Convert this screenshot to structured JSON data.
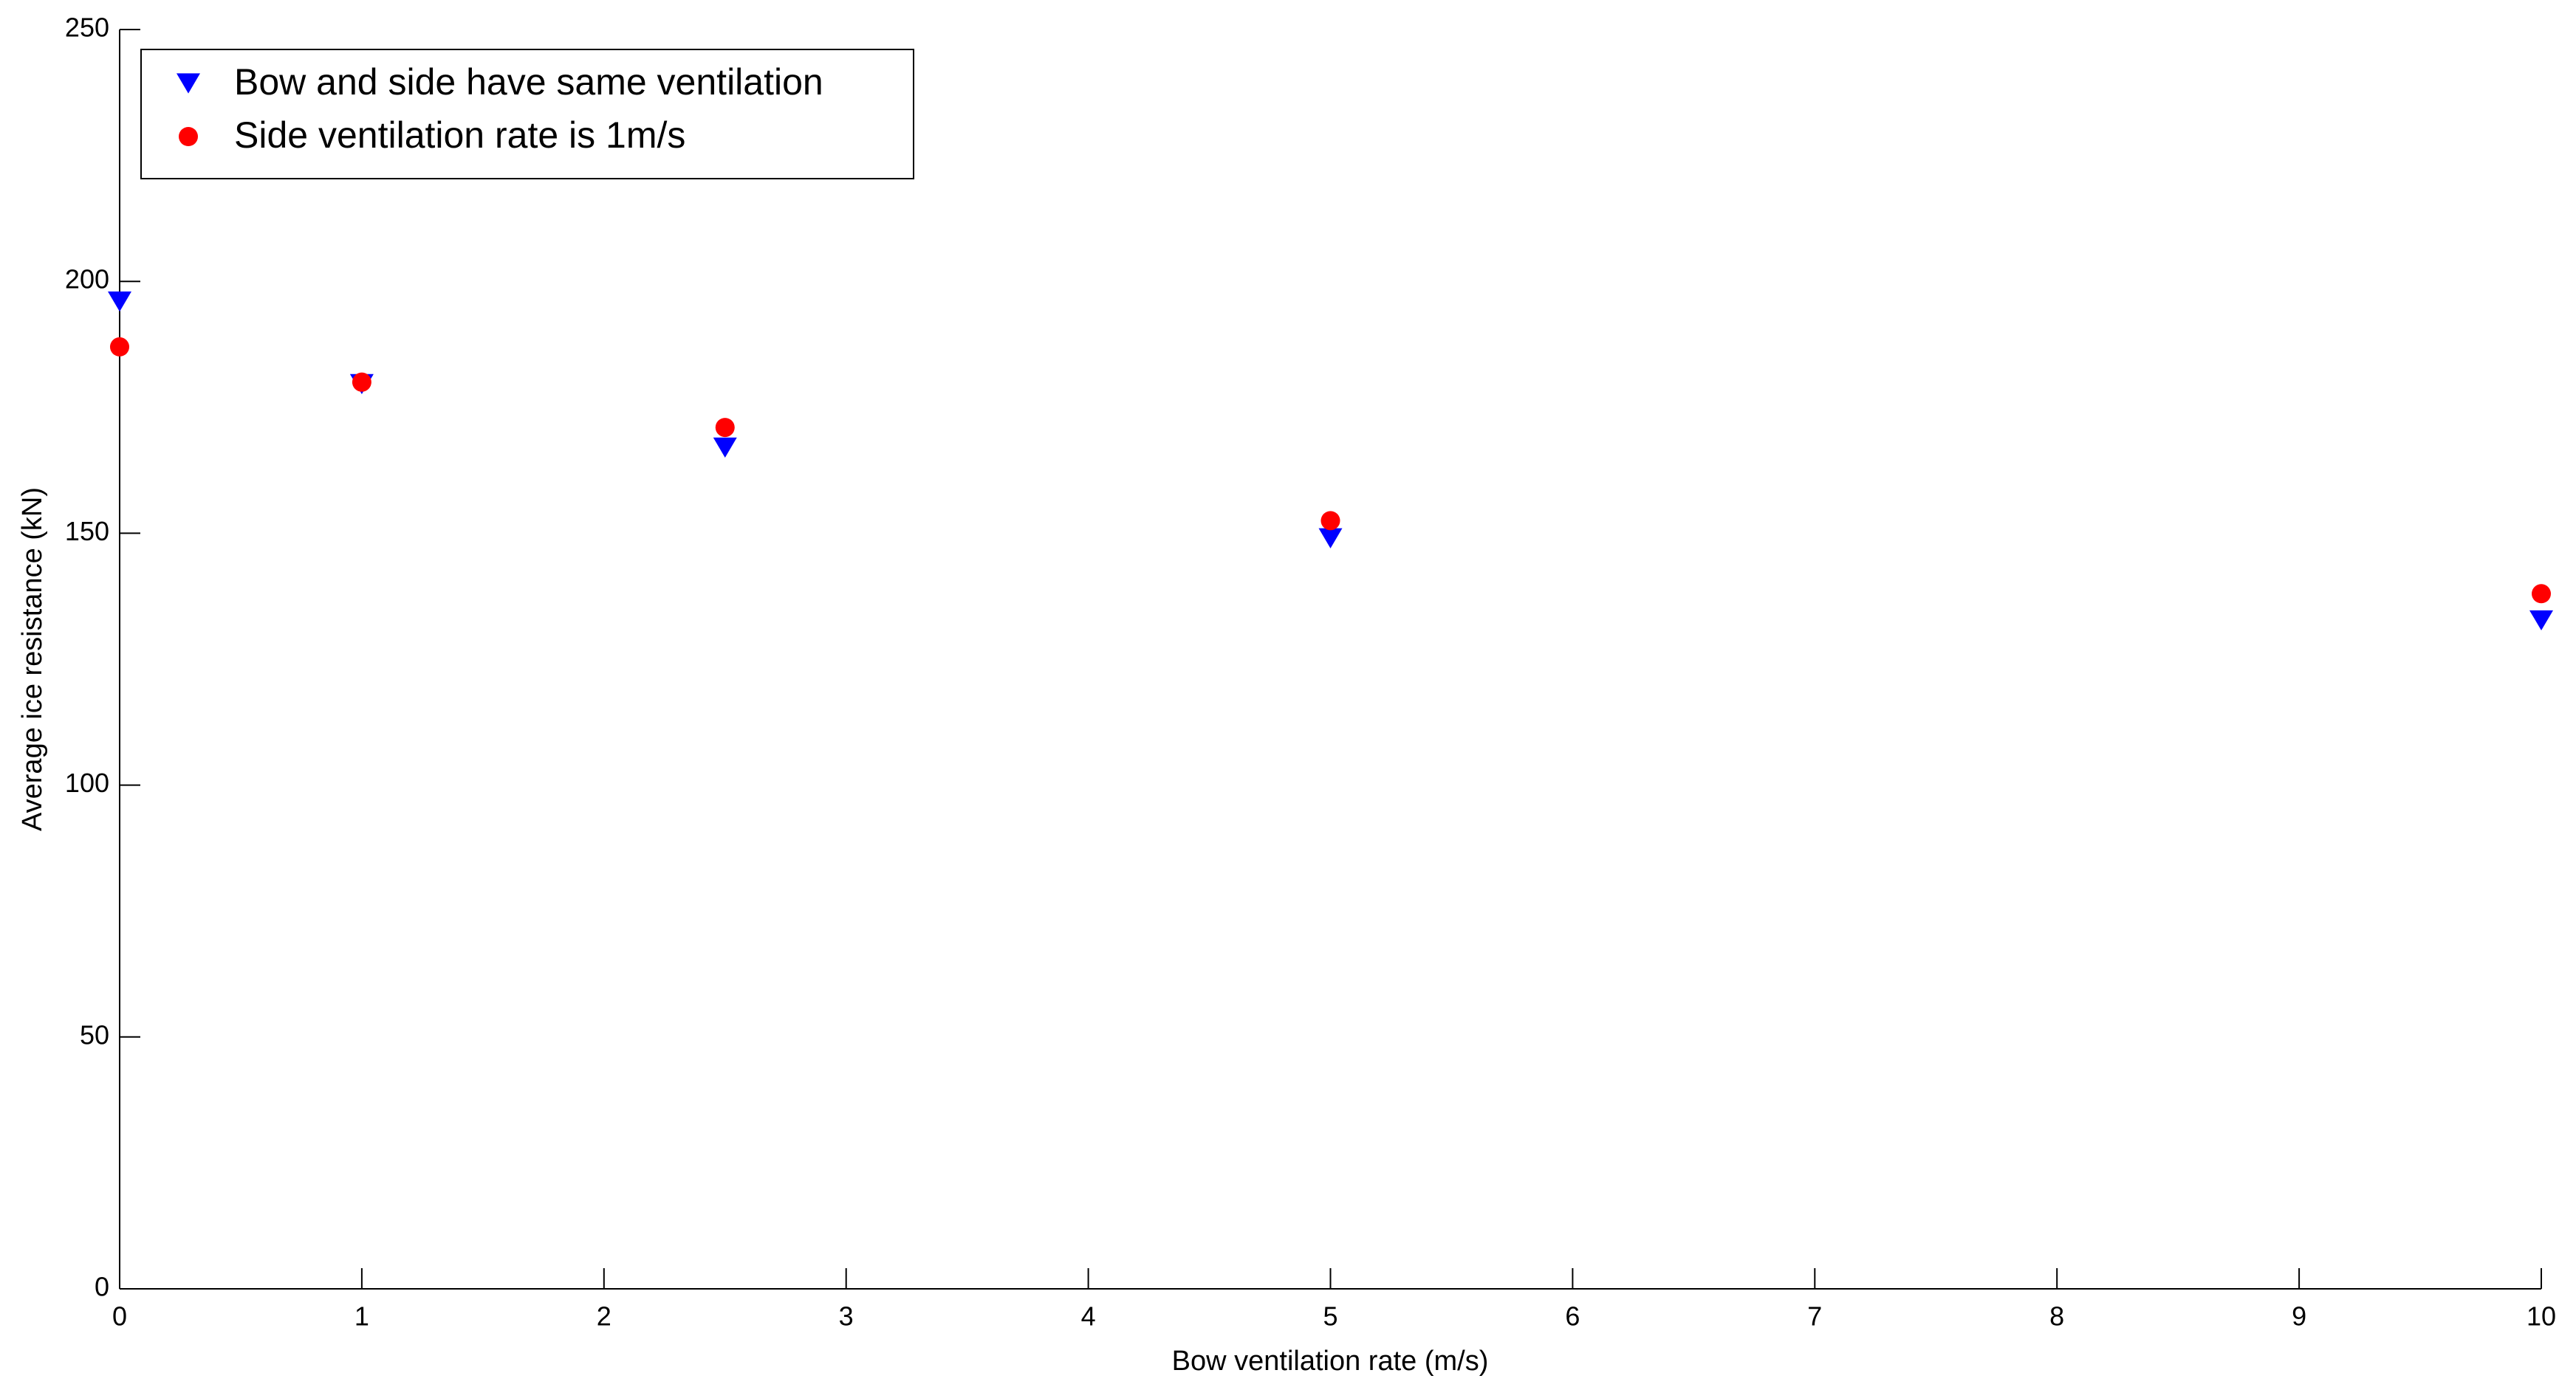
{
  "chart_data": {
    "type": "scatter",
    "x_label": "Bow ventilation rate (m/s)",
    "y_label": "Average ice resistance (kN)",
    "x": [
      0,
      1,
      2.5,
      5,
      10
    ],
    "series": [
      {
        "name": "Bow and side have same ventilation",
        "color": "#0000ff",
        "marker": "triangle-down",
        "values": [
          196,
          179.6,
          167,
          149,
          132.7
        ]
      },
      {
        "name": "Side ventilation rate is 1m/s",
        "color": "#ff0000",
        "marker": "circle",
        "values": [
          187,
          180,
          171,
          152.5,
          138
        ]
      }
    ],
    "xlim": [
      0,
      10
    ],
    "xticks": [
      0,
      1,
      2,
      3,
      4,
      5,
      6,
      7,
      8,
      9,
      10
    ],
    "ylim": [
      0,
      250
    ],
    "yticks": [
      0,
      50,
      100,
      150,
      200,
      250
    ],
    "grid": false,
    "legend": "upper left"
  }
}
